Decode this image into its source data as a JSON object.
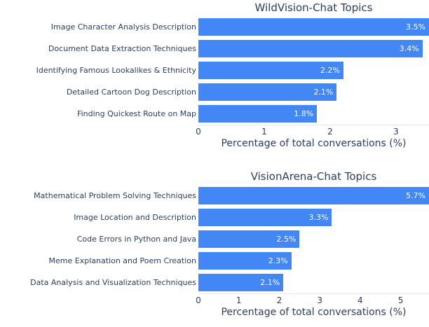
{
  "colors": {
    "bar_fill": "#4287f5",
    "text": "#2a3f5f",
    "value_label_text": "#ffffff",
    "axis_line": "#e8e8e8",
    "background": "#ffffff"
  },
  "chart_data": [
    {
      "type": "bar",
      "orientation": "horizontal",
      "title": "WildVision-Chat Topics",
      "xlabel": "Percentage of total conversations (%)",
      "ylabel": "",
      "categories": [
        "Image Character Analysis Description",
        "Document Data Extraction Techniques",
        "Identifying Famous Lookalikes & Ethnicity",
        "Detailed Cartoon Dog Description",
        "Finding Quickest Route on Map"
      ],
      "values": [
        3.5,
        3.4,
        2.2,
        2.1,
        1.8
      ],
      "value_labels": [
        "3.5%",
        "3.4%",
        "2.2%",
        "2.1%",
        "1.8%"
      ],
      "xlim": [
        0,
        3.5
      ],
      "xticks": [
        0,
        1,
        2,
        3
      ],
      "grid": false,
      "legend": false,
      "value_label_position": "inside-end"
    },
    {
      "type": "bar",
      "orientation": "horizontal",
      "title": "VisionArena-Chat Topics",
      "xlabel": "Percentage of total conversations (%)",
      "ylabel": "",
      "categories": [
        "Mathematical Problem Solving Techniques",
        "Image Location and Description",
        "Code Errors in Python and Java",
        "Meme Explanation and Poem Creation",
        "Data Analysis and Visualization Techniques"
      ],
      "values": [
        5.7,
        3.3,
        2.5,
        2.3,
        2.1
      ],
      "value_labels": [
        "5.7%",
        "3.3%",
        "2.5%",
        "2.3%",
        "2.1%"
      ],
      "xlim": [
        0,
        5.7
      ],
      "xticks": [
        0,
        1,
        2,
        3,
        4,
        5
      ],
      "grid": false,
      "legend": false,
      "value_label_position": "inside-end"
    }
  ]
}
